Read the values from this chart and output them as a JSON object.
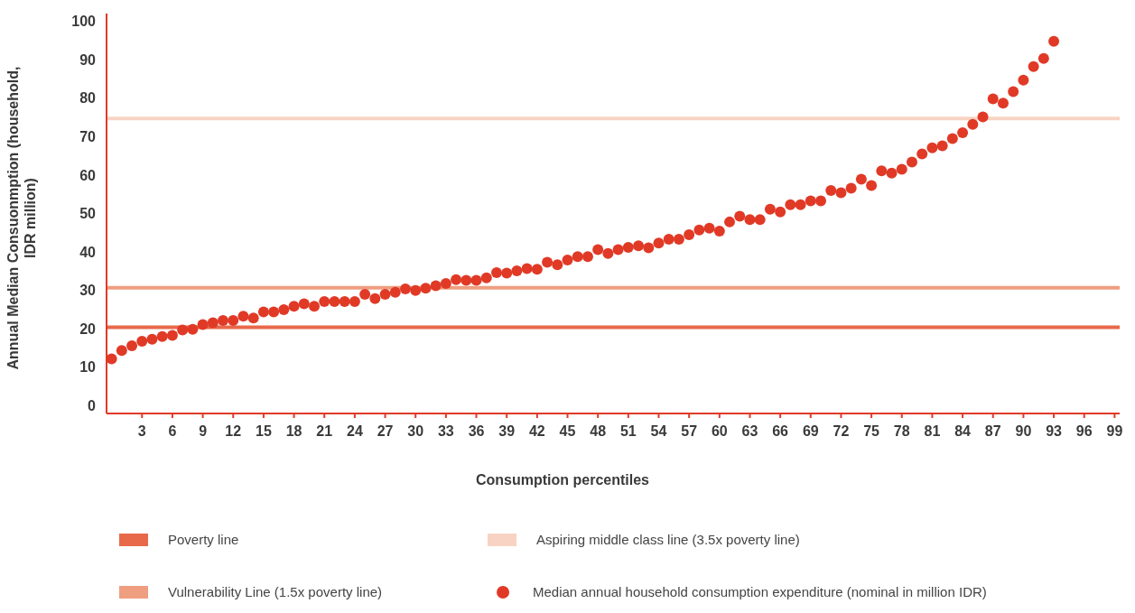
{
  "chart_data": {
    "type": "scatter",
    "xlabel": "Consumption percentiles",
    "ylabel": "Annual Median Consuonmption (household, IDR million)",
    "x": [
      0,
      1,
      2,
      3,
      4,
      5,
      6,
      7,
      8,
      9,
      10,
      11,
      12,
      13,
      14,
      15,
      16,
      17,
      18,
      19,
      20,
      21,
      22,
      23,
      24,
      25,
      26,
      27,
      28,
      29,
      30,
      31,
      32,
      33,
      34,
      35,
      36,
      37,
      38,
      39,
      40,
      41,
      42,
      43,
      44,
      45,
      46,
      47,
      48,
      49,
      50,
      51,
      52,
      53,
      54,
      55,
      56,
      57,
      58,
      59,
      60,
      61,
      62,
      63,
      64,
      65,
      66,
      67,
      68,
      69,
      70,
      71,
      72,
      73,
      74,
      75,
      76,
      77,
      78,
      79,
      80,
      81,
      82,
      83,
      84,
      85,
      86,
      87,
      88,
      89,
      90,
      91,
      92,
      93
    ],
    "series": [
      {
        "name": "Median annual household consumption expenditure (nominal in million IDR)",
        "color": "#e03a27",
        "values": [
          12.2,
          14.4,
          15.6,
          16.8,
          17.3,
          18.0,
          18.3,
          19.7,
          19.9,
          21.1,
          21.6,
          22.2,
          22.2,
          23.3,
          22.8,
          24.4,
          24.4,
          25.0,
          25.9,
          26.5,
          25.9,
          27.1,
          27.1,
          27.1,
          27.1,
          29.0,
          27.9,
          29.0,
          29.5,
          30.4,
          30.0,
          30.6,
          31.2,
          31.8,
          32.8,
          32.6,
          32.6,
          33.3,
          34.6,
          34.5,
          35.1,
          35.7,
          35.5,
          37.3,
          36.7,
          37.9,
          38.8,
          38.8,
          40.6,
          39.6,
          40.6,
          41.2,
          41.6,
          41.1,
          42.3,
          43.3,
          43.3,
          44.5,
          45.7,
          46.2,
          45.4,
          47.8,
          49.3,
          48.4,
          48.4,
          51.1,
          50.4,
          52.3,
          52.3,
          53.3,
          53.3,
          56.0,
          55.4,
          56.6,
          58.9,
          57.3,
          61.1,
          60.5,
          61.5,
          63.4,
          65.5,
          67.1,
          67.6,
          69.5,
          71.0,
          73.2,
          75.1,
          79.8,
          78.7,
          81.7,
          84.7,
          88.2,
          90.3,
          94.8
        ]
      }
    ],
    "ref_lines": [
      {
        "axis": "y",
        "value": 20.4,
        "label": "Poverty line",
        "color": "#e8694a"
      },
      {
        "axis": "y",
        "value": 74.7,
        "label": "Aspiring middle class line (3.5x poverty line)",
        "color": "#f8d3c3"
      },
      {
        "axis": "y",
        "value": 30.7,
        "label": "Vulnerability Line (1.5x poverty line)",
        "color": "#ef9e80"
      }
    ],
    "xlim": [
      -0.5,
      99.5
    ],
    "xticks": [
      3,
      6,
      9,
      12,
      15,
      18,
      21,
      24,
      27,
      30,
      33,
      36,
      39,
      42,
      45,
      48,
      51,
      54,
      57,
      60,
      63,
      66,
      69,
      72,
      75,
      78,
      81,
      84,
      87,
      90,
      93,
      96,
      99
    ],
    "ylim": [
      -2,
      102
    ],
    "yticks": [
      0,
      10,
      20,
      30,
      40,
      50,
      60,
      70,
      80,
      90,
      100
    ],
    "marker": "circle",
    "grid": false,
    "legend": "bottom"
  }
}
